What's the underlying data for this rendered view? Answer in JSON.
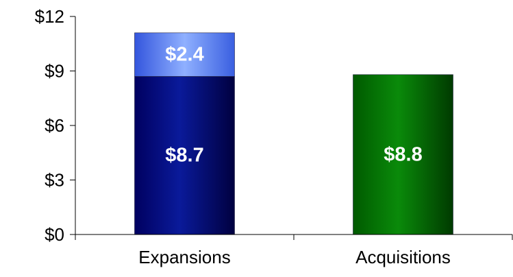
{
  "chart_data": {
    "type": "bar",
    "stacked": true,
    "categories": [
      "Expansions",
      "Acquisitions"
    ],
    "bars": [
      {
        "category": "Expansions",
        "segments": [
          {
            "value": 8.7,
            "label": "$8.7",
            "color": "#000080"
          },
          {
            "value": 2.4,
            "label": "$2.4",
            "color": "#6699ff"
          }
        ]
      },
      {
        "category": "Acquisitions",
        "segments": [
          {
            "value": 8.8,
            "label": "$8.8",
            "color": "#008000"
          }
        ]
      }
    ],
    "ylim": [
      0,
      12
    ],
    "yticks": [
      0,
      3,
      6,
      9,
      12
    ],
    "ytick_labels": [
      "$0",
      "$3",
      "$6",
      "$9",
      "$12"
    ],
    "title": "",
    "xlabel": "",
    "ylabel": "",
    "legend": "none",
    "grid": false
  }
}
